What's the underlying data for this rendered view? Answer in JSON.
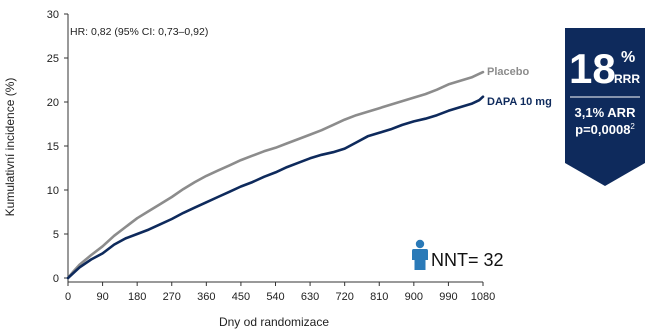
{
  "chart_data": {
    "type": "line",
    "xlabel": "Dny od randomizace",
    "ylabel": "Kumulativní incidence (%)",
    "xlim": [
      0,
      1080
    ],
    "ylim": [
      0,
      30
    ],
    "x_ticks": [
      "0",
      "90",
      "180",
      "270",
      "360",
      "450",
      "540",
      "630",
      "720",
      "810",
      "900",
      "990",
      "1080"
    ],
    "y_ticks": [
      "0",
      "5",
      "10",
      "15",
      "20",
      "25",
      "30"
    ],
    "grid": false,
    "hr_annotation": "HR: 0,82 (95% CI: 0,73–0,92)",
    "series": [
      {
        "name": "Placebo",
        "color": "#8c8c8c",
        "x": [
          0,
          15,
          30,
          60,
          90,
          120,
          150,
          180,
          210,
          240,
          270,
          300,
          330,
          360,
          390,
          420,
          450,
          480,
          510,
          540,
          570,
          600,
          630,
          660,
          690,
          720,
          750,
          780,
          810,
          840,
          870,
          900,
          930,
          960,
          990,
          1020,
          1050,
          1070,
          1080
        ],
        "y": [
          0,
          0.8,
          1.5,
          2.6,
          3.6,
          4.8,
          5.8,
          6.8,
          7.6,
          8.4,
          9.2,
          10.1,
          10.9,
          11.6,
          12.2,
          12.8,
          13.4,
          13.9,
          14.4,
          14.8,
          15.3,
          15.8,
          16.3,
          16.8,
          17.4,
          18.0,
          18.5,
          18.9,
          19.3,
          19.7,
          20.1,
          20.5,
          20.9,
          21.4,
          22.0,
          22.4,
          22.8,
          23.2,
          23.4
        ]
      },
      {
        "name": "DAPA 10 mg",
        "color": "#0e2a5c",
        "x": [
          0,
          15,
          30,
          60,
          90,
          120,
          150,
          180,
          210,
          240,
          270,
          300,
          330,
          360,
          390,
          420,
          450,
          480,
          510,
          540,
          570,
          600,
          630,
          660,
          690,
          720,
          750,
          780,
          810,
          840,
          870,
          900,
          930,
          960,
          990,
          1020,
          1050,
          1070,
          1080
        ],
        "y": [
          0,
          0.6,
          1.2,
          2.1,
          2.8,
          3.8,
          4.5,
          5.0,
          5.5,
          6.1,
          6.7,
          7.4,
          8.0,
          8.6,
          9.2,
          9.8,
          10.4,
          10.9,
          11.5,
          12.0,
          12.6,
          13.1,
          13.6,
          14.0,
          14.3,
          14.7,
          15.4,
          16.1,
          16.5,
          16.9,
          17.4,
          17.8,
          18.1,
          18.5,
          19.0,
          19.4,
          19.8,
          20.2,
          20.6
        ]
      }
    ]
  },
  "badge": {
    "big_number": "18",
    "percent": "%",
    "rrr": "RRR",
    "arr": "3,1% ARR",
    "p_value": "p=0,0008",
    "p_superscript": "2",
    "color": "#0e2a5c"
  },
  "nnt": {
    "text": "NNT= 32",
    "icon": "person-icon",
    "icon_color": "#2a7ab8"
  }
}
